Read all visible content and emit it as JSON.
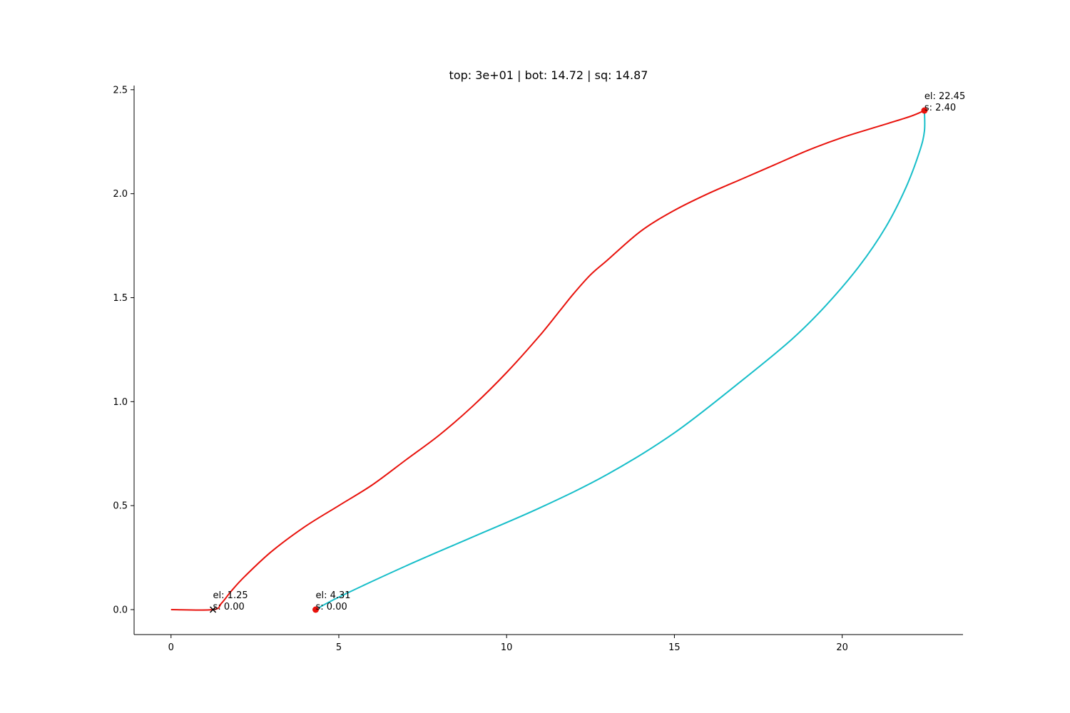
{
  "chart_data": {
    "type": "line",
    "title": "top: 3e+01 | bot: 14.72 | sq: 14.87",
    "xlabel": "",
    "ylabel": "",
    "xlim": [
      -1.1,
      23.6
    ],
    "ylim": [
      -0.12,
      2.52
    ],
    "xticks": [
      0,
      5,
      10,
      15,
      20
    ],
    "xtick_labels": [
      "0",
      "5",
      "10",
      "15",
      "20"
    ],
    "yticks": [
      0.0,
      0.5,
      1.0,
      1.5,
      2.0,
      2.5
    ],
    "ytick_labels": [
      "0.0",
      "0.5",
      "1.0",
      "1.5",
      "2.0",
      "2.5"
    ],
    "grid": false,
    "series": [
      {
        "color": "#e8120c",
        "points": [
          [
            0,
            0
          ],
          [
            1.25,
            0
          ],
          [
            1.5,
            0.03
          ],
          [
            1.8,
            0.09
          ],
          [
            2.2,
            0.16
          ],
          [
            3.0,
            0.28
          ],
          [
            4.0,
            0.4
          ],
          [
            5.0,
            0.5
          ],
          [
            6.0,
            0.6
          ],
          [
            7.0,
            0.72
          ],
          [
            8.0,
            0.84
          ],
          [
            9.0,
            0.98
          ],
          [
            10.0,
            1.14
          ],
          [
            11.0,
            1.32
          ],
          [
            11.6,
            1.44
          ],
          [
            12.0,
            1.52
          ],
          [
            12.5,
            1.61
          ],
          [
            13.0,
            1.68
          ],
          [
            14.0,
            1.82
          ],
          [
            15.0,
            1.92
          ],
          [
            16.0,
            2.0
          ],
          [
            17.0,
            2.07
          ],
          [
            18.0,
            2.14
          ],
          [
            19.0,
            2.21
          ],
          [
            20.0,
            2.27
          ],
          [
            21.0,
            2.32
          ],
          [
            22.0,
            2.37
          ],
          [
            22.45,
            2.4
          ]
        ]
      },
      {
        "color": "#17bec9",
        "points": [
          [
            4.31,
            0.0
          ],
          [
            5.0,
            0.06
          ],
          [
            7.0,
            0.21
          ],
          [
            9.0,
            0.35
          ],
          [
            11.0,
            0.49
          ],
          [
            13.0,
            0.65
          ],
          [
            15.0,
            0.85
          ],
          [
            17.0,
            1.1
          ],
          [
            18.5,
            1.3
          ],
          [
            19.5,
            1.46
          ],
          [
            20.5,
            1.65
          ],
          [
            21.3,
            1.84
          ],
          [
            21.9,
            2.03
          ],
          [
            22.3,
            2.2
          ],
          [
            22.45,
            2.3
          ],
          [
            22.45,
            2.4
          ]
        ]
      }
    ],
    "markers": [
      {
        "x": 1.25,
        "y": 0.0,
        "shape": "x",
        "color": "#000000"
      },
      {
        "x": 4.31,
        "y": 0.0,
        "shape": "dot",
        "color": "#e8120c"
      },
      {
        "x": 22.45,
        "y": 2.4,
        "shape": "dot",
        "color": "#e8120c"
      }
    ],
    "annotations": [
      {
        "x": 1.25,
        "y": 0.0,
        "line1": "el: 1.25",
        "line2": "s: 0.00"
      },
      {
        "x": 4.31,
        "y": 0.0,
        "line1": "el: 4.31",
        "line2": "s: 0.00"
      },
      {
        "x": 22.45,
        "y": 2.4,
        "line1": "el: 22.45",
        "line2": "s: 2.40"
      }
    ]
  }
}
